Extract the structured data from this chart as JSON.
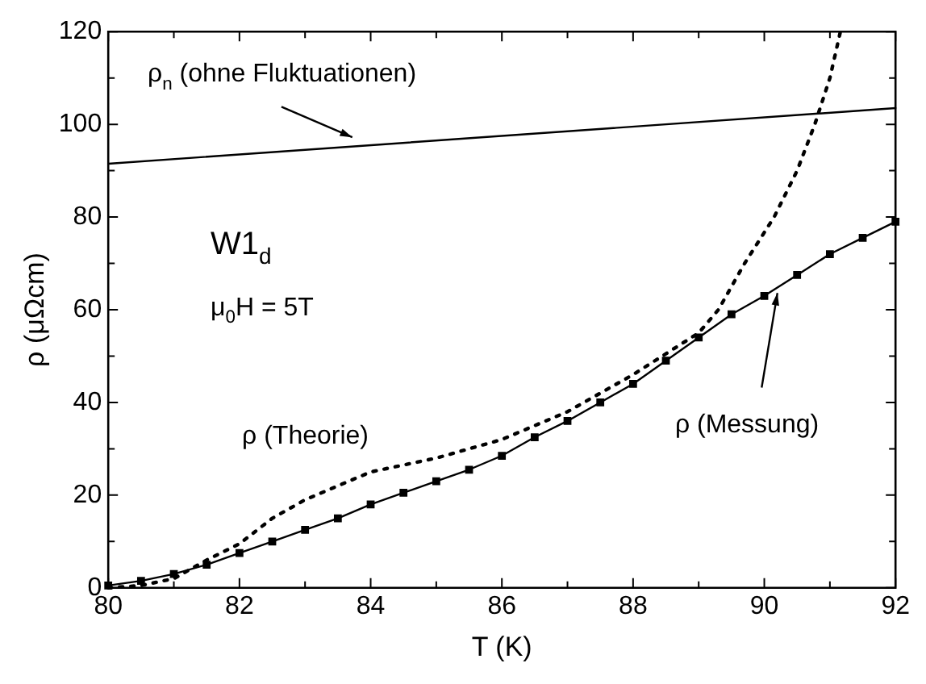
{
  "chart_data": {
    "type": "line",
    "xlabel": "T (K)",
    "ylabel": "ρ (μΩcm)",
    "series": [
      {
        "name": "ρ$_{n}$ (ohne Fluktuationen)",
        "color": "#000000",
        "marker": "none",
        "line_style": "solid",
        "x": [
          80,
          92
        ],
        "values": [
          91.5,
          103.5
        ]
      },
      {
        "name": "ρ (Theorie)",
        "color": "#000000",
        "marker": "none",
        "line_style": "dotted",
        "x": [
          80,
          80.5,
          81,
          81.5,
          82,
          82.5,
          83,
          84,
          85,
          86,
          87,
          88,
          89,
          89.3,
          89.7,
          90.15,
          90.5,
          90.77,
          91,
          91.16
        ],
        "values": [
          0,
          0.5,
          2,
          6,
          9.5,
          15,
          19,
          25,
          28,
          32,
          38,
          46,
          55,
          60,
          70,
          80,
          90,
          100,
          110,
          120
        ]
      },
      {
        "name": "ρ (Messung)",
        "color": "#000000",
        "marker": "square",
        "line_style": "solid",
        "x": [
          80,
          80.5,
          81,
          81.5,
          82,
          82.5,
          83,
          83.5,
          84,
          84.5,
          85,
          85.5,
          86,
          86.5,
          87,
          87.5,
          88,
          88.5,
          89,
          89.5,
          90,
          90.5,
          91,
          91.5,
          92
        ],
        "values": [
          0.5,
          1.5,
          3,
          5,
          7.5,
          10,
          12.5,
          15,
          18,
          20.5,
          23,
          25.5,
          28.5,
          32.5,
          36,
          40,
          44,
          49,
          54,
          59,
          63,
          67.5,
          72,
          75.5,
          79
        ]
      }
    ],
    "annotations": [
      "W1$_{d}$",
      "μ$_{0}$H = 5T"
    ],
    "xlim": [
      80,
      92
    ],
    "xticks": [
      80,
      {
        "value": 81,
        "label": null
      },
      82,
      {
        "value": 83,
        "label": null
      },
      84,
      {
        "value": 85,
        "label": null
      },
      86,
      {
        "value": 87,
        "label": null
      },
      88,
      {
        "value": 89,
        "label": null
      },
      90,
      {
        "value": 91,
        "label": null
      },
      92
    ],
    "ylim": [
      0,
      120
    ],
    "yticks": [
      0,
      {
        "value": 10,
        "label": null
      },
      20,
      {
        "value": 30,
        "label": null
      },
      40,
      {
        "value": 50,
        "label": null
      },
      60,
      {
        "value": 70,
        "label": null
      },
      80,
      {
        "value": 90,
        "label": null
      },
      100,
      {
        "value": 110,
        "label": null
      },
      120
    ],
    "grid": false
  }
}
